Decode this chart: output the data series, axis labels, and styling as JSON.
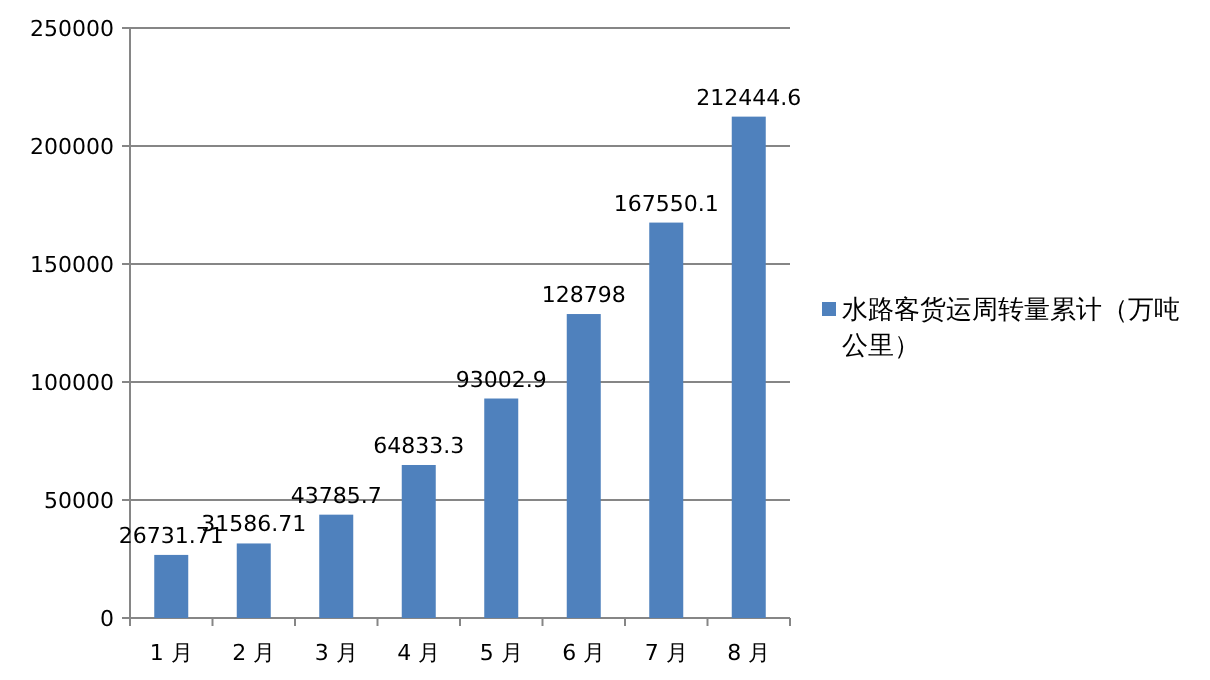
{
  "chart_data": {
    "type": "bar",
    "categories": [
      "1 月",
      "2 月",
      "3 月",
      "4 月",
      "5 月",
      "6 月",
      "7 月",
      "8 月"
    ],
    "series": [
      {
        "name": "水路客货运周转量累计（万吨公里）",
        "color": "#4f81bd",
        "values": [
          26731.71,
          31586.71,
          43785.7,
          64833.3,
          93002.9,
          128798,
          167550.1,
          212444.6
        ]
      }
    ],
    "ylim": [
      0,
      250000
    ],
    "yticks": [
      0,
      50000,
      100000,
      150000,
      200000,
      250000
    ],
    "grid": "y",
    "legend": "right",
    "data_labels": true
  }
}
